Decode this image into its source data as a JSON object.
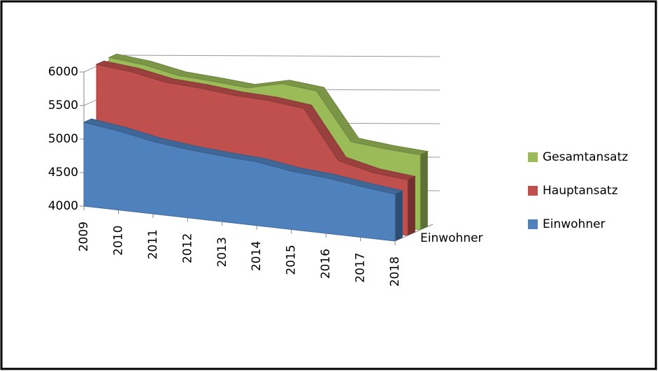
{
  "chart_data": {
    "type": "area3d",
    "categories": [
      "2009",
      "2010",
      "2011",
      "2012",
      "2013",
      "2014",
      "2015",
      "2016",
      "2017",
      "2018"
    ],
    "series": [
      {
        "name": "Einwohner",
        "color": "#4f81bd",
        "values": [
          5250,
          5180,
          5080,
          5020,
          4980,
          4950,
          4870,
          4830,
          4760,
          4700
        ]
      },
      {
        "name": "Hauptansatz",
        "color": "#c0504d",
        "values": [
          6030,
          5980,
          5880,
          5850,
          5800,
          5780,
          5720,
          5000,
          4880,
          4830
        ]
      },
      {
        "name": "Gesamtansatz",
        "color": "#9bbb59",
        "values": [
          6050,
          6000,
          5900,
          5870,
          5830,
          5950,
          5900,
          5200,
          5150,
          5120
        ]
      }
    ],
    "depth_labels": [
      "Einwohner"
    ],
    "ylim": [
      4000,
      6000
    ],
    "yticks": [
      4000,
      4500,
      5000,
      5500,
      6000
    ],
    "grid": true,
    "legend": "right"
  }
}
